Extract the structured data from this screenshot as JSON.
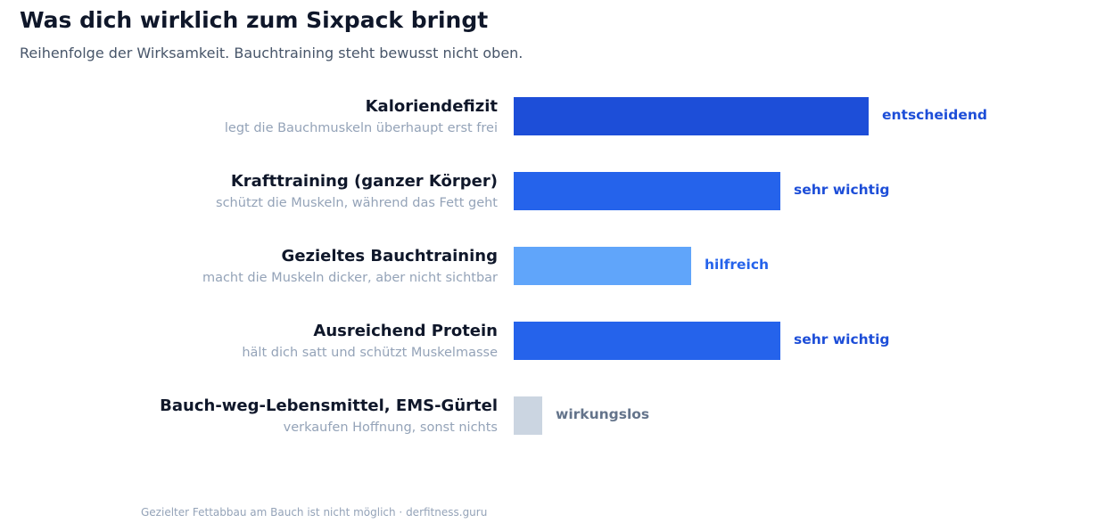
{
  "header": {
    "title": "Was dich wirklich zum Sixpack bringt",
    "subtitle": "Reihenfolge der Wirksamkeit. Bauchtraining steht bewusst nicht oben."
  },
  "footnote": "Gezielter Fettabbau am Bauch ist nicht möglich · derfitness.guru",
  "chart_data": {
    "type": "bar",
    "orientation": "horizontal",
    "scale_max": 100,
    "grid": false,
    "legend": "none",
    "categories": [
      "Kaloriendefizit",
      "Krafttraining (ganzer Körper)",
      "Gezieltes Bauchtraining",
      "Ausreichend Protein",
      "Bauch-weg-Lebensmittel, EMS-Gürtel"
    ],
    "descriptions": [
      "legt die Bauchmuskeln überhaupt erst frei",
      "schützt die Muskeln, während das Fett geht",
      "macht die Muskeln dicker, aber nicht sichtbar",
      "hält dich satt und schützt Muskelmasse",
      "verkaufen Hoffnung, sonst nichts"
    ],
    "values": [
      100,
      75,
      50,
      75,
      8
    ],
    "value_labels": [
      "entscheidend",
      "sehr wichtig",
      "hilfreich",
      "sehr wichtig",
      "wirkungslos"
    ],
    "bar_colors": [
      "#1d4ed8",
      "#2563eb",
      "#60a5fa",
      "#2563eb",
      "#cbd5e1"
    ],
    "label_colors": [
      "#1d4ed8",
      "#1d4ed8",
      "#2563eb",
      "#1d4ed8",
      "#64748b"
    ],
    "category_color": "#0f172a",
    "description_color": "#94a3b8"
  }
}
